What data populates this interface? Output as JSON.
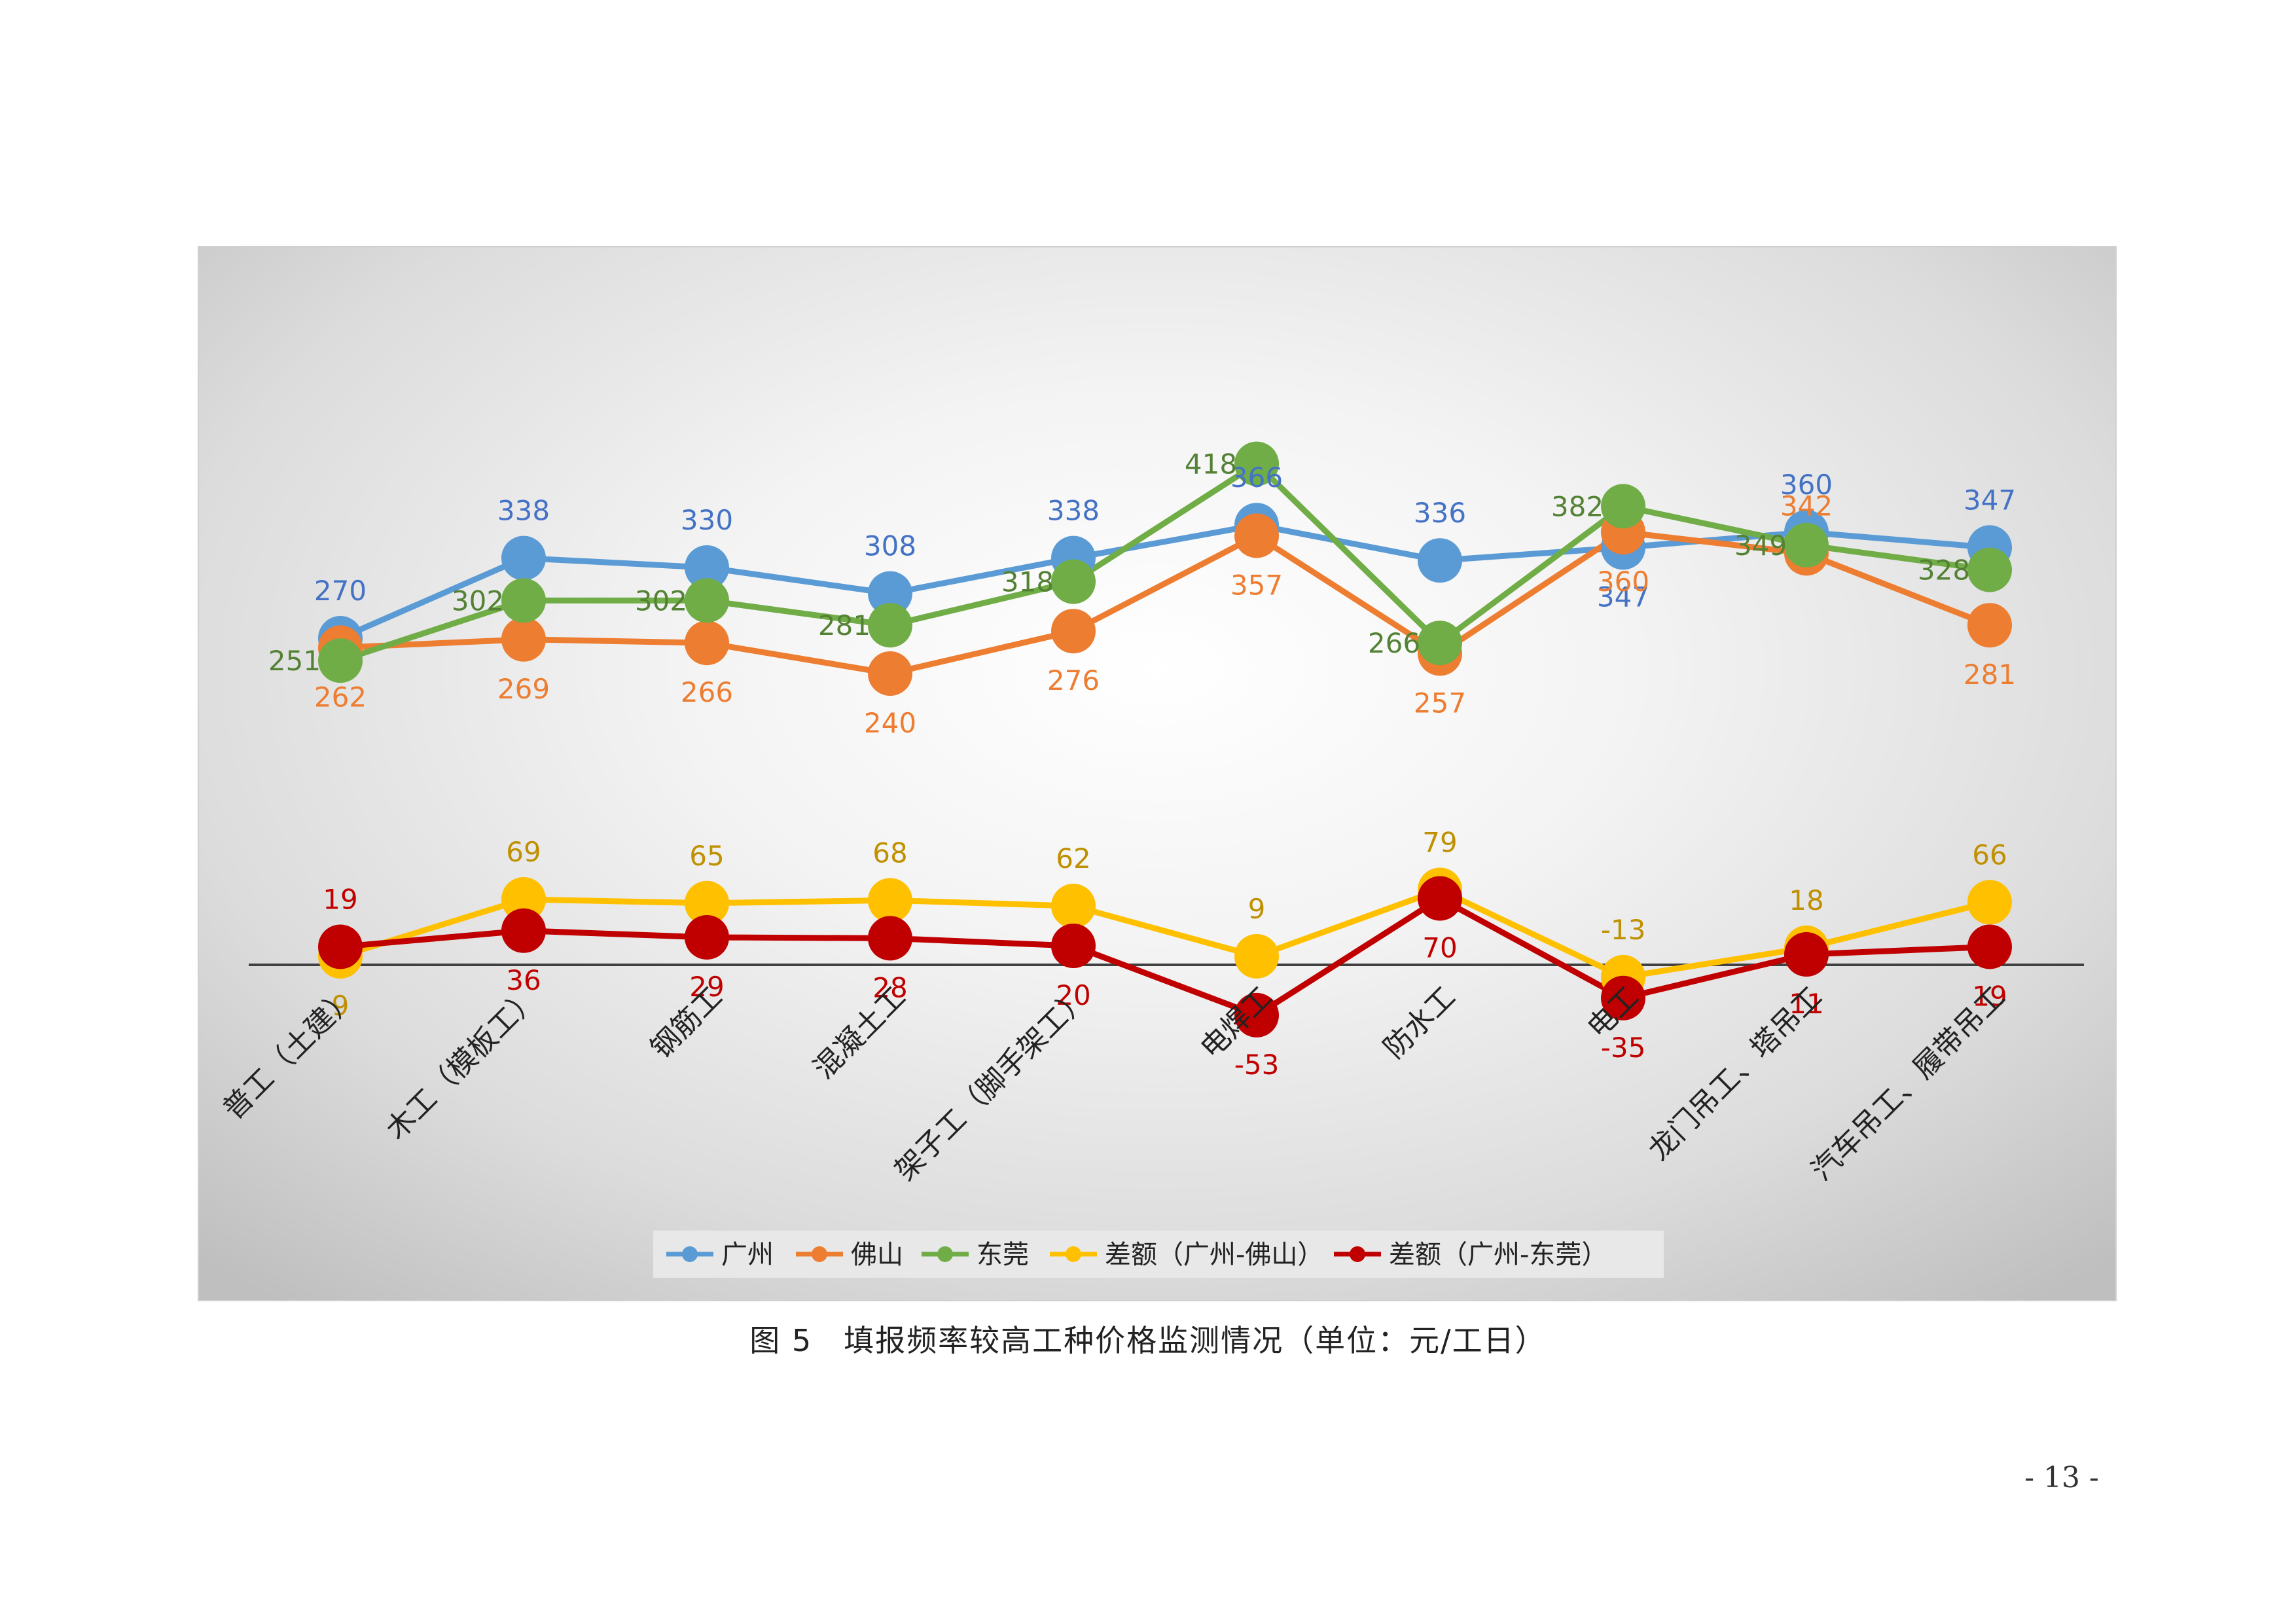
{
  "chart_data": {
    "type": "line",
    "title": "",
    "xlabel": "",
    "ylabel": "",
    "categories": [
      "普工（土建）",
      "木工（模板工）",
      "钢筋工",
      "混凝土工",
      "架子工（脚手架工）",
      "电焊工",
      "防水工",
      "电工",
      "龙门吊工、塔吊工",
      "汽车吊工、履带吊工"
    ],
    "series": [
      {
        "name": "广州",
        "color": "#5b9bd5",
        "values": [
          270,
          338,
          330,
          308,
          338,
          366,
          336,
          347,
          360,
          347
        ]
      },
      {
        "name": "佛山",
        "color": "#ed7d31",
        "values": [
          262,
          269,
          266,
          240,
          276,
          357,
          257,
          360,
          342,
          281
        ]
      },
      {
        "name": "东莞",
        "color": "#70ad47",
        "values": [
          251,
          302,
          302,
          281,
          318,
          418,
          266,
          382,
          349,
          328
        ]
      },
      {
        "name": "差额（广州-佛山）",
        "color": "#ffc000",
        "values": [
          9,
          69,
          65,
          68,
          62,
          9,
          79,
          -13,
          18,
          66
        ]
      },
      {
        "name": "差额（广州-东莞）",
        "color": "#c00000",
        "values": [
          19,
          36,
          29,
          28,
          20,
          -53,
          70,
          -35,
          11,
          19
        ]
      }
    ],
    "label_colors": {
      "广州": "#4472c4",
      "佛山": "#ed7d31",
      "东莞": "#548235",
      "差额（广州-佛山）": "#bf9000",
      "差额（广州-东莞）": "#c00000"
    },
    "legend_position": "bottom",
    "grid": false,
    "baseline": 0
  },
  "caption": "图 5　填报频率较高工种价格监测情况（单位：元/工日）",
  "page_number": "- 13 -"
}
